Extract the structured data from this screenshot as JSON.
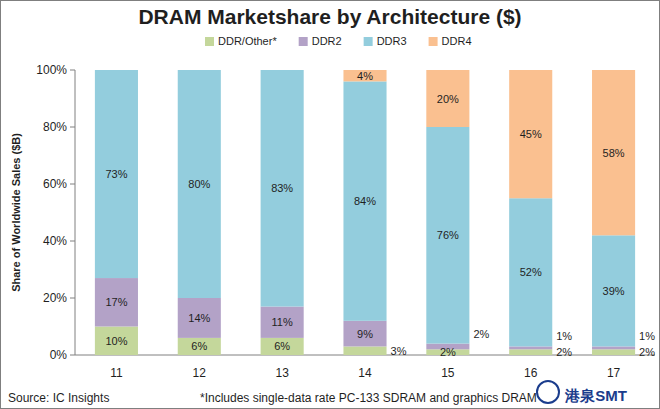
{
  "chart_data": {
    "type": "bar",
    "title": "DRAM Marketshare by Architecture ($)",
    "y_label": "Share of Worldwide Sales ($B)",
    "source": "Source:  IC Insights",
    "footnote": "*Includes single-data rate PC-133 SDRAM and graphics DRAM",
    "watermark": "港泉SMT",
    "stacked": true,
    "data_labels": true,
    "grid": false,
    "legend": "top",
    "categories": [
      "11",
      "12",
      "13",
      "14",
      "15",
      "16",
      "17"
    ],
    "series": [
      {
        "name": "DDR/Other*",
        "color": "#c4d79b",
        "values": [
          10,
          6,
          6,
          3,
          2,
          2,
          2
        ],
        "value_labels": [
          "10%",
          "6%",
          "6%",
          "3%",
          "2%",
          "2%",
          "2%"
        ]
      },
      {
        "name": "DDR2",
        "color": "#b3a2c7",
        "values": [
          17,
          14,
          11,
          9,
          2,
          1,
          1
        ],
        "value_labels": [
          "17%",
          "14%",
          "11%",
          "9%",
          "2%",
          "1%",
          "1%"
        ]
      },
      {
        "name": "DDR3",
        "color": "#93cddd",
        "values": [
          73,
          80,
          83,
          84,
          76,
          52,
          39
        ],
        "value_labels": [
          "73%",
          "80%",
          "83%",
          "84%",
          "76%",
          "52%",
          "39%"
        ]
      },
      {
        "name": "DDR4",
        "color": "#fac090",
        "values": [
          null,
          null,
          null,
          4,
          20,
          45,
          58
        ],
        "value_labels": [
          null,
          null,
          null,
          "4%",
          "20%",
          "45%",
          "58%"
        ]
      }
    ],
    "ylim": [
      0,
      100
    ],
    "yticks": [
      {
        "value": 0,
        "label": "0%"
      },
      {
        "value": 20,
        "label": "20%"
      },
      {
        "value": 40,
        "label": "40%"
      },
      {
        "value": 60,
        "label": "60%"
      },
      {
        "value": 80,
        "label": "80%"
      },
      {
        "value": 100,
        "label": "100%"
      }
    ]
  }
}
